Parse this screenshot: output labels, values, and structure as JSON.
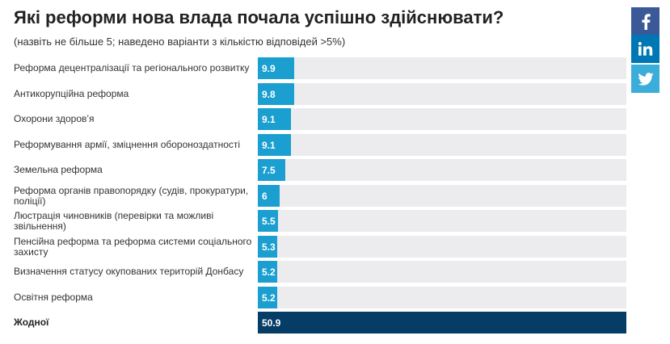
{
  "header": {
    "title": "Які реформи нова влада почала успішно здійснювати?",
    "subtitle": "(назвіть не більше 5; наведено варіанти з кількістю відповідей >5%)"
  },
  "share": {
    "facebook_icon": "facebook-icon",
    "linkedin_icon": "linkedin-icon",
    "twitter_icon": "twitter-icon",
    "colors": {
      "facebook": "#3b5998",
      "linkedin": "#0077b5",
      "twitter": "#3aaed8"
    }
  },
  "chart_data": {
    "type": "bar",
    "orientation": "horizontal",
    "title": "Які реформи нова влада почала успішно здійснювати?",
    "subtitle": "(назвіть не більше 5; наведено варіанти з кількістю відповідей >5%)",
    "xlim": [
      0,
      100
    ],
    "categories": [
      "Реформа децентралізації та регіонального розвитку",
      "Антикорупційна реформа",
      "Охорони здоров’я",
      "Реформування армії, зміцнення обороноздатності",
      "Земельна реформа",
      "Реформа органів правопорядку (судів, прокуратури, поліції)",
      "Люстрація чиновників (перевірки та можливі звільнення)",
      "Пенсійна реформа та реформа системи соціального захисту",
      "Визначення статусу окупованих територій Донбасу",
      "Освітня реформа",
      "Жодної"
    ],
    "values": [
      9.9,
      9.8,
      9.1,
      9.1,
      7.5,
      6,
      5.5,
      5.3,
      5.2,
      5.2,
      50.9
    ],
    "value_labels": [
      "9.9",
      "9.8",
      "9.1",
      "9.1",
      "7.5",
      "6",
      "5.5",
      "5.3",
      "5.2",
      "5.2",
      "50.9"
    ],
    "highlight_index": 10,
    "colors": {
      "bar": "#1a9fd0",
      "highlight": "#063d66",
      "track": "#ececef"
    }
  }
}
